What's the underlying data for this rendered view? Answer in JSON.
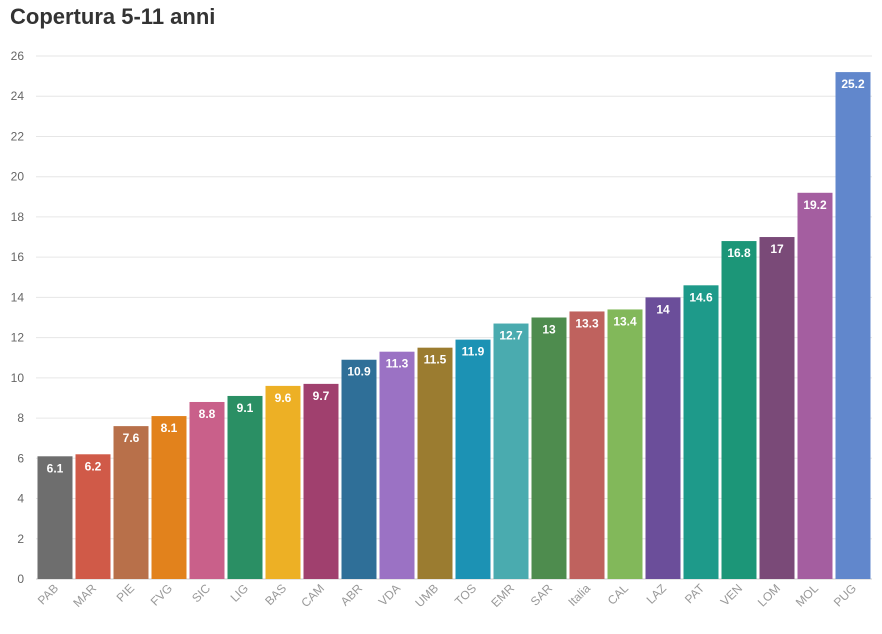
{
  "chart_data": {
    "type": "bar",
    "title": "Copertura 5-11 anni",
    "xlabel": "",
    "ylabel": "",
    "ylim": [
      0,
      26
    ],
    "yticks": [
      0,
      2,
      4,
      6,
      8,
      10,
      12,
      14,
      16,
      18,
      20,
      22,
      24,
      26
    ],
    "grid": true,
    "categories": [
      "PAB",
      "MAR",
      "PIE",
      "FVG",
      "SIC",
      "LIG",
      "BAS",
      "CAM",
      "ABR",
      "VDA",
      "UMB",
      "TOS",
      "EMR",
      "SAR",
      "Italia",
      "CAL",
      "LAZ",
      "PAT",
      "VEN",
      "LOM",
      "MOL",
      "PUG"
    ],
    "values": [
      6.1,
      6.2,
      7.6,
      8.1,
      8.8,
      9.1,
      9.6,
      9.7,
      10.9,
      11.3,
      11.5,
      11.9,
      12.7,
      13,
      13.3,
      13.4,
      14,
      14.6,
      16.8,
      17,
      19.2,
      25.2
    ],
    "value_labels": [
      "6.1",
      "6.2",
      "7.6",
      "8.1",
      "8.8",
      "9.1",
      "9.6",
      "9.7",
      "10.9",
      "11.3",
      "11.5",
      "11.9",
      "12.7",
      "13",
      "13.3",
      "13.4",
      "14",
      "14.6",
      "16.8",
      "17",
      "19.2",
      "25.2"
    ],
    "colors": [
      "#6e6e6e",
      "#d05a48",
      "#b8704a",
      "#e2821c",
      "#c9608a",
      "#2a8f64",
      "#edb025",
      "#a0406e",
      "#2f6f98",
      "#9b72c4",
      "#9b7c30",
      "#1c92b4",
      "#4aabaf",
      "#4e8c4e",
      "#bf625e",
      "#82b85a",
      "#6b4e9a",
      "#1e9a8a",
      "#1c9678",
      "#7a4a78",
      "#a45ea0",
      "#6187cc"
    ]
  }
}
